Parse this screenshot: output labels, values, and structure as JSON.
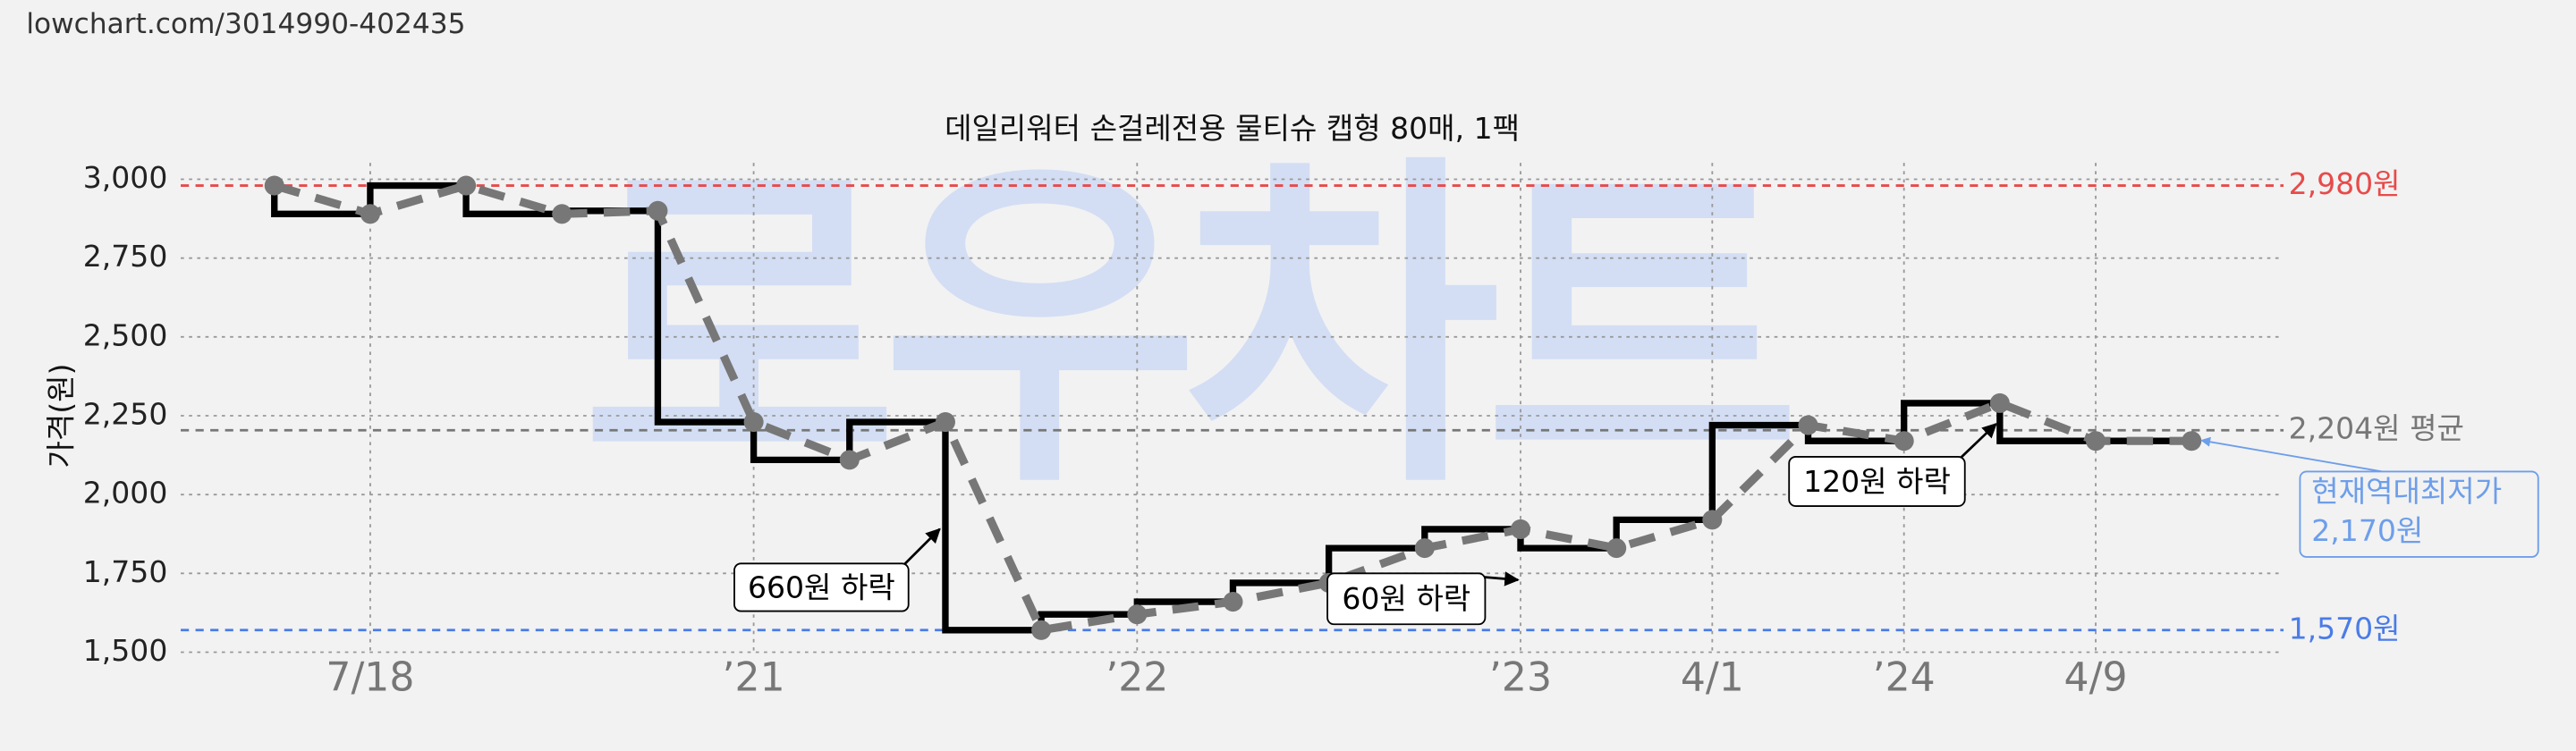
{
  "url": "lowchart.com/3014990-402435",
  "chart_data": {
    "type": "step",
    "title": "데일리워터 손걸레전용 물티슈 캡형 80매, 1팩",
    "y_label": "가격(원)",
    "watermark": "로우차트",
    "categories": [
      null,
      "7/18",
      null,
      null,
      null,
      "’21",
      null,
      null,
      null,
      "’22",
      null,
      null,
      null,
      "’23",
      null,
      "4/1",
      null,
      "’24",
      null,
      "4/9",
      null
    ],
    "series": [
      {
        "name": "가격",
        "color": "#000000",
        "values": [
          2980,
          2890,
          2980,
          2890,
          2900,
          2230,
          2110,
          2230,
          1570,
          1620,
          1660,
          1720,
          1830,
          1890,
          1830,
          1920,
          2220,
          2170,
          2290,
          2170,
          2170
        ]
      }
    ],
    "ylim": [
      1500,
      3000
    ],
    "yticks": [
      {
        "value": 1500,
        "label": "1,500"
      },
      {
        "value": 1750,
        "label": "1,750"
      },
      {
        "value": 2000,
        "label": "2,000"
      },
      {
        "value": 2250,
        "label": "2,250"
      },
      {
        "value": 2500,
        "label": "2,500"
      },
      {
        "value": 2750,
        "label": "2,750"
      },
      {
        "value": 3000,
        "label": "3,000"
      }
    ],
    "grid": true,
    "reference_lines": [
      {
        "value": 2980,
        "label": "2,980원",
        "color": "#e84a4a"
      },
      {
        "value": 2204,
        "label": "2,204원 평균",
        "color": "#777777"
      },
      {
        "value": 1570,
        "label": "1,570원",
        "color": "#4a7ce8"
      }
    ],
    "annotations": [
      "660원 하락",
      "60원 하락",
      "120원 하락"
    ],
    "current_label": [
      "현재역대최저가",
      "2,170원"
    ]
  }
}
